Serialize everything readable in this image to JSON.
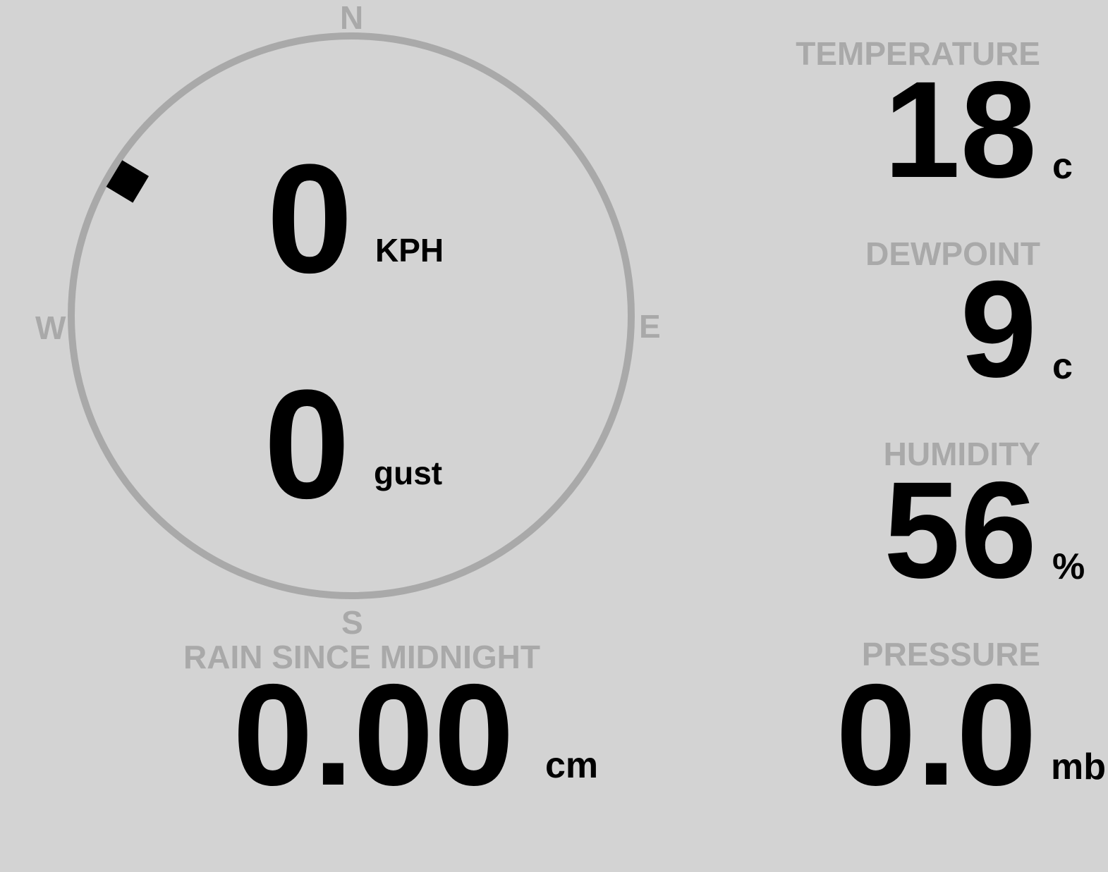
{
  "compass": {
    "north": "N",
    "east": "E",
    "south": "S",
    "west": "W",
    "wind_direction_deg": 301,
    "ring_color": "#a9a9a9",
    "marker_color": "#000000"
  },
  "wind": {
    "speed": "0",
    "speed_unit": "KPH",
    "gust": "0",
    "gust_unit": "gust"
  },
  "rain": {
    "label": "RAIN SINCE MIDNIGHT",
    "value": "0.00",
    "unit": "cm"
  },
  "temperature": {
    "label": "TEMPERATURE",
    "value": "18",
    "unit": "c"
  },
  "dewpoint": {
    "label": "DEWPOINT",
    "value": "9",
    "unit": "c"
  },
  "humidity": {
    "label": "HUMIDITY",
    "value": "56",
    "unit": "%"
  },
  "pressure": {
    "label": "PRESSURE",
    "value": "0.0",
    "unit": "mb"
  }
}
